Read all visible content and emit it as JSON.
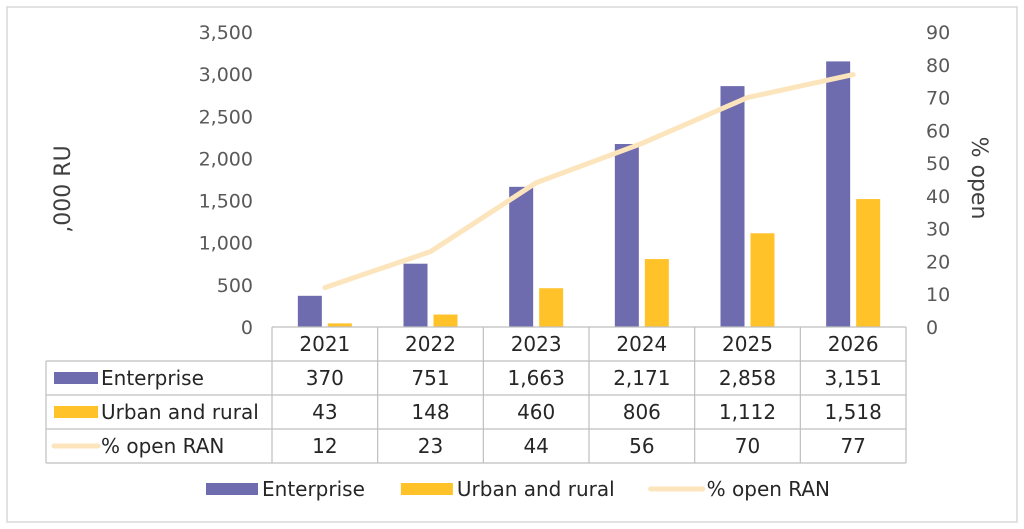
{
  "chart_data": {
    "type": "bar",
    "categories": [
      "2021",
      "2022",
      "2023",
      "2024",
      "2025",
      "2026"
    ],
    "series": [
      {
        "name": "Enterprise",
        "kind": "bar",
        "axis": "left",
        "color": "#6F6BAF",
        "values": [
          370,
          751,
          1663,
          2171,
          2858,
          3151
        ],
        "labels": [
          "370",
          "751",
          "1,663",
          "2,171",
          "2,858",
          "3,151"
        ]
      },
      {
        "name": "Urban and rural",
        "kind": "bar",
        "axis": "left",
        "color": "#FFC229",
        "values": [
          43,
          148,
          460,
          806,
          1112,
          1518
        ],
        "labels": [
          "43",
          "148",
          "460",
          "806",
          "1,112",
          "1,518"
        ]
      },
      {
        "name": "% open RAN",
        "kind": "line",
        "axis": "right",
        "color": "#FCE5BC",
        "values": [
          12,
          23,
          44,
          56,
          70,
          77
        ],
        "labels": [
          "12",
          "23",
          "44",
          "56",
          "70",
          "77"
        ]
      }
    ],
    "ylabel": ",000 RU",
    "y2label": "% open",
    "ylim": [
      0,
      3500
    ],
    "y2lim": [
      0,
      90
    ],
    "yticks": [
      "0",
      "500",
      "1,000",
      "1,500",
      "2,000",
      "2,500",
      "3,000",
      "3,500"
    ],
    "y2ticks": [
      "0",
      "10",
      "20",
      "30",
      "40",
      "50",
      "60",
      "70",
      "80",
      "90"
    ],
    "data_table": true,
    "legend": "bottom",
    "grid": false
  }
}
